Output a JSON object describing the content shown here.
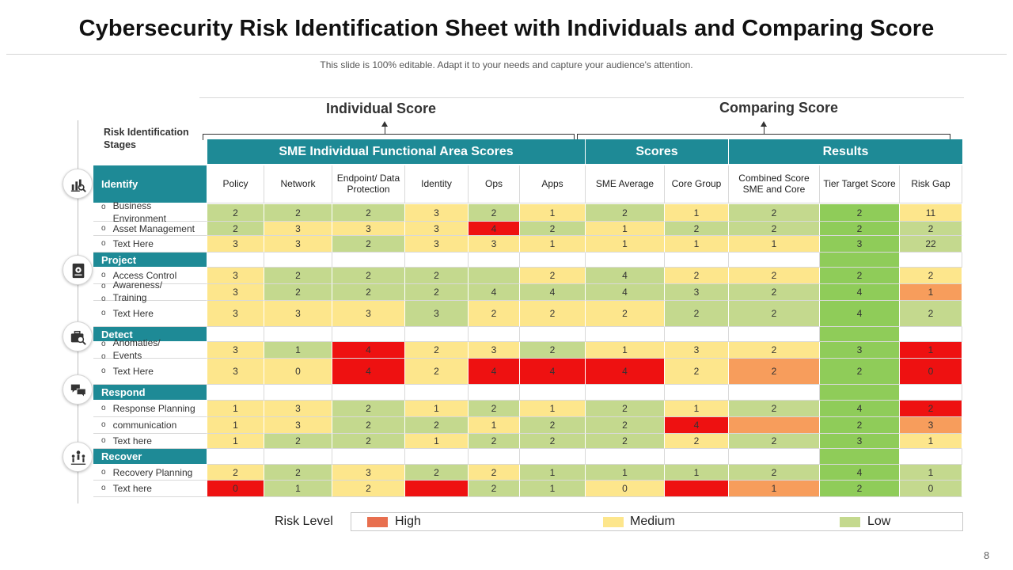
{
  "title": "Cybersecurity Risk Identification Sheet with Individuals and Comparing Score",
  "subtitle": "This slide is 100% editable. Adapt it to your needs and capture your audience's attention.",
  "groups": {
    "individual": "Individual Score",
    "comparing": "Comparing Score"
  },
  "stages_label": "Risk Identification Stages",
  "headers": {
    "sme": "SME Individual Functional Area Scores",
    "scores": "Scores",
    "results": "Results"
  },
  "columns": [
    "Policy",
    "Network",
    "Endpoint/ Data Protection",
    "Identity",
    "Ops",
    "Apps",
    "SME Average",
    "Core Group",
    "Combined Score SME and Core",
    "Tier Target Score",
    "Risk Gap"
  ],
  "rows": [
    {
      "label": "Identify",
      "stage": true
    },
    {
      "label": "Business Environment",
      "values": [
        "2",
        "2",
        "2",
        "3",
        "2",
        "1",
        "2",
        "1",
        "2",
        "2",
        "11"
      ],
      "colors": [
        "g",
        "g",
        "g",
        "y",
        "g",
        "y",
        "g",
        "y",
        "g",
        "t",
        "y"
      ]
    },
    {
      "label": "Asset Management",
      "values": [
        "2",
        "3",
        "3",
        "3",
        "4",
        "2",
        "1",
        "2",
        "2",
        "2",
        "2"
      ],
      "colors": [
        "g",
        "y",
        "y",
        "y",
        "r",
        "g",
        "y",
        "g",
        "g",
        "t",
        "g"
      ]
    },
    {
      "label": "Text Here",
      "values": [
        "3",
        "3",
        "2",
        "3",
        "3",
        "1",
        "1",
        "1",
        "1",
        "3",
        "22"
      ],
      "colors": [
        "y",
        "y",
        "g",
        "y",
        "y",
        "y",
        "y",
        "y",
        "y",
        "t",
        "g"
      ]
    },
    {
      "label": "Project",
      "stage": true
    },
    {
      "label": "Access Control",
      "values": [
        "3",
        "2",
        "2",
        "2",
        "",
        "2",
        "4",
        "2",
        "2",
        "2",
        "2"
      ],
      "colors": [
        "y",
        "g",
        "g",
        "g",
        "g",
        "y",
        "g",
        "y",
        "y",
        "t",
        "y"
      ]
    },
    {
      "label": "Awareness/ Training",
      "values": [
        "3",
        "2",
        "2",
        "2",
        "4",
        "4",
        "4",
        "3",
        "2",
        "4",
        "1"
      ],
      "colors": [
        "y",
        "g",
        "g",
        "g",
        "g",
        "g",
        "g",
        "g",
        "g",
        "t",
        "o"
      ]
    },
    {
      "label": "Text Here",
      "values": [
        "3",
        "3",
        "3",
        "3",
        "2",
        "2",
        "2",
        "2",
        "2",
        "4",
        "2"
      ],
      "colors": [
        "y",
        "y",
        "y",
        "g",
        "y",
        "y",
        "y",
        "g",
        "g",
        "t",
        "g"
      ]
    },
    {
      "label": "Detect",
      "stage": true
    },
    {
      "label": "Anomaties/ Events",
      "values": [
        "3",
        "1",
        "4",
        "2",
        "3",
        "2",
        "1",
        "3",
        "2",
        "3",
        "1"
      ],
      "colors": [
        "y",
        "g",
        "r",
        "y",
        "y",
        "g",
        "y",
        "y",
        "y",
        "t",
        "r"
      ]
    },
    {
      "label": "Text Here",
      "values": [
        "3",
        "0",
        "4",
        "2",
        "4",
        "4",
        "4",
        "2",
        "2",
        "2",
        "0"
      ],
      "colors": [
        "y",
        "y",
        "r",
        "y",
        "r",
        "r",
        "r",
        "y",
        "o",
        "t",
        "r"
      ]
    },
    {
      "label": "Respond",
      "stage": true
    },
    {
      "label": "Response Planning",
      "values": [
        "1",
        "3",
        "2",
        "1",
        "2",
        "1",
        "2",
        "1",
        "2",
        "4",
        "2"
      ],
      "colors": [
        "y",
        "y",
        "g",
        "y",
        "g",
        "y",
        "g",
        "y",
        "g",
        "t",
        "r"
      ]
    },
    {
      "label": "communication",
      "values": [
        "1",
        "3",
        "2",
        "2",
        "1",
        "2",
        "2",
        "4",
        "",
        "2",
        "3"
      ],
      "colors": [
        "y",
        "y",
        "g",
        "g",
        "y",
        "g",
        "g",
        "r",
        "o",
        "t",
        "o"
      ]
    },
    {
      "label": "Text here",
      "values": [
        "1",
        "2",
        "2",
        "1",
        "2",
        "2",
        "2",
        "2",
        "2",
        "3",
        "1"
      ],
      "colors": [
        "y",
        "g",
        "g",
        "y",
        "g",
        "g",
        "g",
        "y",
        "g",
        "t",
        "y"
      ]
    },
    {
      "label": "Recover",
      "stage": true
    },
    {
      "label": "Recovery Planning",
      "values": [
        "2",
        "2",
        "3",
        "2",
        "2",
        "1",
        "1",
        "1",
        "2",
        "4",
        "1"
      ],
      "colors": [
        "y",
        "g",
        "y",
        "g",
        "y",
        "g",
        "g",
        "g",
        "g",
        "t",
        "g"
      ]
    },
    {
      "label": "Text here",
      "values": [
        "0",
        "1",
        "2",
        "",
        "2",
        "1",
        "0",
        "",
        "1",
        "2",
        "0"
      ],
      "colors": [
        "r",
        "g",
        "y",
        "r",
        "g",
        "g",
        "y",
        "r",
        "o",
        "t",
        "g"
      ]
    }
  ],
  "legend": {
    "title": "Risk Level",
    "high": "High",
    "medium": "Medium",
    "low": "Low"
  },
  "icons": [
    "chart-magnifier-icon",
    "project-gear-icon",
    "briefcase-search-icon",
    "chat-bubbles-icon",
    "team-icon"
  ],
  "page_number": "8"
}
